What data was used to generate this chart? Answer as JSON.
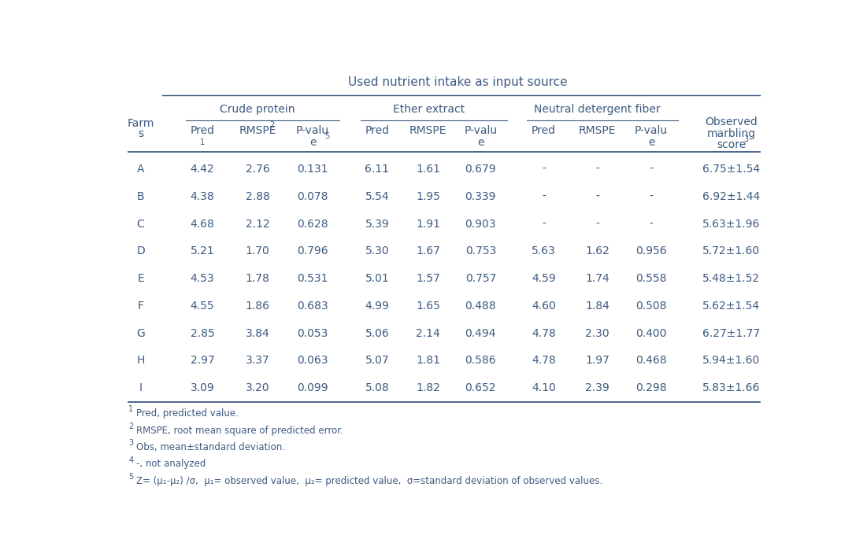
{
  "title": "Used nutrient intake as input source",
  "farms": [
    "A",
    "B",
    "C",
    "D",
    "E",
    "F",
    "G",
    "H",
    "I"
  ],
  "crude_protein": [
    [
      "4.42",
      "2.76",
      "0.131"
    ],
    [
      "4.38",
      "2.88",
      "0.078"
    ],
    [
      "4.68",
      "2.12",
      "0.628"
    ],
    [
      "5.21",
      "1.70",
      "0.796"
    ],
    [
      "4.53",
      "1.78",
      "0.531"
    ],
    [
      "4.55",
      "1.86",
      "0.683"
    ],
    [
      "2.85",
      "3.84",
      "0.053"
    ],
    [
      "2.97",
      "3.37",
      "0.063"
    ],
    [
      "3.09",
      "3.20",
      "0.099"
    ]
  ],
  "ether_extract": [
    [
      "6.11",
      "1.61",
      "0.679"
    ],
    [
      "5.54",
      "1.95",
      "0.339"
    ],
    [
      "5.39",
      "1.91",
      "0.903"
    ],
    [
      "5.30",
      "1.67",
      "0.753"
    ],
    [
      "5.01",
      "1.57",
      "0.757"
    ],
    [
      "4.99",
      "1.65",
      "0.488"
    ],
    [
      "5.06",
      "2.14",
      "0.494"
    ],
    [
      "5.07",
      "1.81",
      "0.586"
    ],
    [
      "5.08",
      "1.82",
      "0.652"
    ]
  ],
  "neutral_detergent_fiber": [
    [
      "-",
      "-",
      "-"
    ],
    [
      "-",
      "-",
      "-"
    ],
    [
      "-",
      "-",
      "-"
    ],
    [
      "5.63",
      "1.62",
      "0.956"
    ],
    [
      "4.59",
      "1.74",
      "0.558"
    ],
    [
      "4.60",
      "1.84",
      "0.508"
    ],
    [
      "4.78",
      "2.30",
      "0.400"
    ],
    [
      "4.78",
      "1.97",
      "0.468"
    ],
    [
      "4.10",
      "2.39",
      "0.298"
    ]
  ],
  "observed": [
    "6.75±1.54",
    "6.92±1.44",
    "5.63±1.96",
    "5.72±1.60",
    "5.48±1.52",
    "5.62±1.54",
    "6.27±1.77",
    "5.94±1.60",
    "5.83±1.66"
  ],
  "text_color": "#3D5A80",
  "line_color": "#3D5A80",
  "bg_color": "#FFFFFF",
  "title_fontsize": 11,
  "data_fontsize": 10,
  "footnote_fontsize": 8.5,
  "sup_fontsize": 7
}
